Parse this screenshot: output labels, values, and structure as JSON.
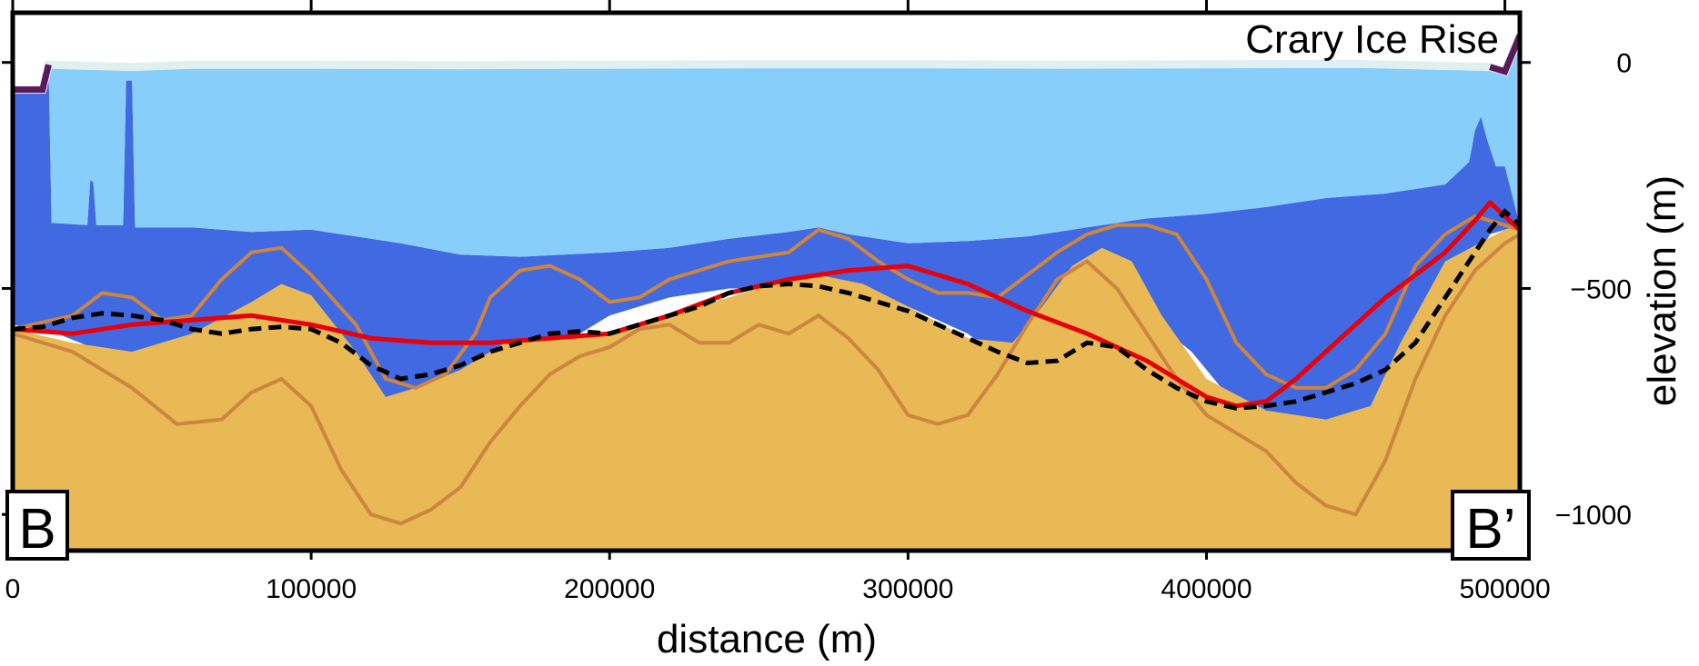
{
  "chart_data": {
    "type": "area",
    "title": "Crary Ice Rise",
    "xlabel": "distance (m)",
    "ylabel": "elevation (m)",
    "xlim": [
      0,
      505000
    ],
    "ylim": [
      -1080,
      110
    ],
    "x_ticks": [
      0,
      100000,
      200000,
      300000,
      400000,
      500000
    ],
    "x_tick_labels": [
      "0",
      "100000",
      "200000",
      "300000",
      "400000",
      "500000"
    ],
    "y_ticks": [
      0,
      -500,
      -1000
    ],
    "y_tick_labels": [
      "0",
      "−500",
      "−1000"
    ],
    "start_label": "B",
    "end_label": "B’",
    "grid": false,
    "colors": {
      "air": "#ffffff",
      "ice": "#87cefa",
      "water": "#4169e1",
      "bed": "#e8b954",
      "bed_bounds": "#cd853f",
      "red_line": "#e8000b",
      "dashed_line": "#000000",
      "surface_edge": "#e0f0f0",
      "grounded_surface": "#5a1a5a"
    },
    "series": [
      {
        "kind": "ice_surface",
        "x": [
          0,
          10000,
          12000,
          40000,
          60000,
          100000,
          150000,
          200000,
          250000,
          300000,
          350000,
          400000,
          450000,
          495000,
          500000,
          505000
        ],
        "values": [
          -60,
          -60,
          -5,
          -10,
          -5,
          -5,
          -6,
          -5,
          -4,
          -4,
          -5,
          -4,
          -3,
          -10,
          -20,
          60
        ]
      },
      {
        "kind": "ice_base",
        "x": [
          0,
          10000,
          12000,
          13000,
          25000,
          26000,
          27000,
          28000,
          37000,
          38000,
          40000,
          41000,
          42000,
          60000,
          80000,
          100000,
          130000,
          150000,
          170000,
          200000,
          220000,
          240000,
          260000,
          270000,
          280000,
          300000,
          320000,
          340000,
          360000,
          380000,
          400000,
          420000,
          440000,
          460000,
          480000,
          488000,
          490000,
          492000,
          494000,
          497000,
          500000,
          505000
        ],
        "values": [
          -60,
          -60,
          -5,
          -355,
          -360,
          -260,
          -265,
          -360,
          -360,
          -40,
          -40,
          -365,
          -365,
          -365,
          -375,
          -370,
          -400,
          -425,
          -430,
          -420,
          -410,
          -390,
          -375,
          -365,
          -380,
          -400,
          -395,
          -385,
          -365,
          -345,
          -335,
          -320,
          -300,
          -290,
          -270,
          -220,
          -150,
          -120,
          -170,
          -230,
          -230,
          -360
        ]
      },
      {
        "kind": "bed",
        "x": [
          0,
          20000,
          40000,
          60000,
          80000,
          90000,
          100000,
          115000,
          125000,
          135000,
          150000,
          165000,
          185000,
          200000,
          220000,
          240000,
          260000,
          270000,
          285000,
          300000,
          320000,
          335000,
          345000,
          355000,
          365000,
          375000,
          385000,
          400000,
          420000,
          440000,
          455000,
          465000,
          480000,
          500000,
          505000
        ],
        "values": [
          -590,
          -620,
          -640,
          -600,
          -530,
          -490,
          -515,
          -640,
          -740,
          -720,
          -680,
          -620,
          -610,
          -605,
          -560,
          -520,
          -480,
          -470,
          -490,
          -540,
          -610,
          -620,
          -540,
          -450,
          -410,
          -440,
          -560,
          -700,
          -770,
          -790,
          -760,
          -620,
          -440,
          -370,
          -360
        ]
      },
      {
        "kind": "water_column_bottom",
        "x": [
          0,
          15000,
          30000,
          45000,
          55000,
          70000,
          85000,
          100000,
          120000,
          127000,
          140000,
          160000,
          180000,
          190000,
          200000,
          220000,
          240000,
          260000,
          280000,
          300000,
          320000,
          330000,
          340000,
          350000,
          365000,
          380000,
          395000,
          410000,
          425000,
          440000,
          450000,
          460000,
          470000,
          480000,
          495000,
          505000
        ],
        "values": [
          -580,
          -600,
          -640,
          -700,
          -680,
          -620,
          -560,
          -600,
          -780,
          -870,
          -850,
          -760,
          -620,
          -600,
          -560,
          -520,
          -500,
          -500,
          -510,
          -540,
          -600,
          -650,
          -650,
          -620,
          -560,
          -560,
          -640,
          -760,
          -820,
          -840,
          -830,
          -790,
          -700,
          -560,
          -380,
          -360
        ]
      },
      {
        "kind": "bed_bound_upper",
        "x": [
          0,
          20000,
          30000,
          40000,
          50000,
          60000,
          70000,
          80000,
          90000,
          100000,
          115000,
          125000,
          135000,
          145000,
          155000,
          160000,
          170000,
          180000,
          190000,
          200000,
          210000,
          220000,
          240000,
          260000,
          270000,
          280000,
          290000,
          300000,
          310000,
          320000,
          330000,
          340000,
          350000,
          360000,
          370000,
          380000,
          390000,
          400000,
          410000,
          420000,
          430000,
          440000,
          450000,
          460000,
          470000,
          480000,
          490000,
          500000,
          505000
        ],
        "values": [
          -590,
          -560,
          -510,
          -520,
          -570,
          -560,
          -480,
          -420,
          -410,
          -470,
          -580,
          -700,
          -720,
          -690,
          -600,
          -520,
          -460,
          -450,
          -480,
          -530,
          -520,
          -480,
          -440,
          -420,
          -370,
          -390,
          -440,
          -480,
          -510,
          -510,
          -520,
          -470,
          -420,
          -380,
          -360,
          -360,
          -380,
          -480,
          -620,
          -690,
          -720,
          -720,
          -680,
          -600,
          -450,
          -380,
          -340,
          -360,
          -370
        ]
      },
      {
        "kind": "bed_bound_lower",
        "x": [
          0,
          20000,
          40000,
          55000,
          70000,
          80000,
          90000,
          100000,
          110000,
          120000,
          130000,
          140000,
          150000,
          160000,
          170000,
          180000,
          190000,
          200000,
          210000,
          220000,
          230000,
          240000,
          250000,
          260000,
          270000,
          280000,
          290000,
          300000,
          310000,
          320000,
          330000,
          340000,
          350000,
          360000,
          370000,
          380000,
          390000,
          400000,
          410000,
          420000,
          430000,
          440000,
          450000,
          460000,
          470000,
          480000,
          490000,
          500000,
          505000
        ],
        "values": [
          -600,
          -640,
          -720,
          -800,
          -790,
          -730,
          -700,
          -760,
          -900,
          -1000,
          -1020,
          -990,
          -940,
          -840,
          -760,
          -690,
          -650,
          -630,
          -590,
          -580,
          -620,
          -620,
          -580,
          -600,
          -560,
          -610,
          -680,
          -780,
          -800,
          -780,
          -690,
          -580,
          -480,
          -440,
          -500,
          -600,
          -700,
          -780,
          -820,
          -860,
          -930,
          -980,
          -1000,
          -880,
          -700,
          -560,
          -460,
          -400,
          -380
        ]
      },
      {
        "kind": "red_line",
        "x": [
          0,
          20000,
          40000,
          60000,
          80000,
          100000,
          120000,
          140000,
          160000,
          180000,
          200000,
          220000,
          240000,
          260000,
          280000,
          300000,
          320000,
          340000,
          360000,
          380000,
          400000,
          410000,
          420000,
          430000,
          440000,
          460000,
          480000,
          490000,
          495000,
          500000,
          505000
        ],
        "values": [
          -590,
          -600,
          -580,
          -570,
          -560,
          -580,
          -610,
          -620,
          -620,
          -610,
          -600,
          -560,
          -510,
          -480,
          -460,
          -450,
          -490,
          -550,
          -600,
          -660,
          -740,
          -760,
          -750,
          -700,
          -640,
          -520,
          -420,
          -350,
          -310,
          -340,
          -370
        ]
      },
      {
        "kind": "dashed_line",
        "x": [
          0,
          10000,
          20000,
          30000,
          40000,
          50000,
          60000,
          70000,
          80000,
          90000,
          100000,
          110000,
          120000,
          130000,
          140000,
          150000,
          160000,
          170000,
          180000,
          190000,
          200000,
          210000,
          220000,
          230000,
          240000,
          250000,
          260000,
          270000,
          280000,
          290000,
          300000,
          310000,
          320000,
          330000,
          340000,
          350000,
          360000,
          370000,
          380000,
          390000,
          400000,
          410000,
          420000,
          430000,
          440000,
          450000,
          460000,
          470000,
          480000,
          490000,
          495000,
          500000,
          505000
        ],
        "values": [
          -590,
          -585,
          -565,
          -555,
          -560,
          -570,
          -590,
          -600,
          -590,
          -585,
          -590,
          -620,
          -670,
          -700,
          -690,
          -670,
          -640,
          -620,
          -600,
          -595,
          -600,
          -580,
          -560,
          -540,
          -510,
          -495,
          -490,
          -495,
          -510,
          -530,
          -550,
          -580,
          -610,
          -640,
          -665,
          -660,
          -620,
          -630,
          -680,
          -720,
          -750,
          -765,
          -760,
          -750,
          -730,
          -710,
          -680,
          -620,
          -520,
          -420,
          -370,
          -330,
          -360
        ]
      }
    ]
  }
}
